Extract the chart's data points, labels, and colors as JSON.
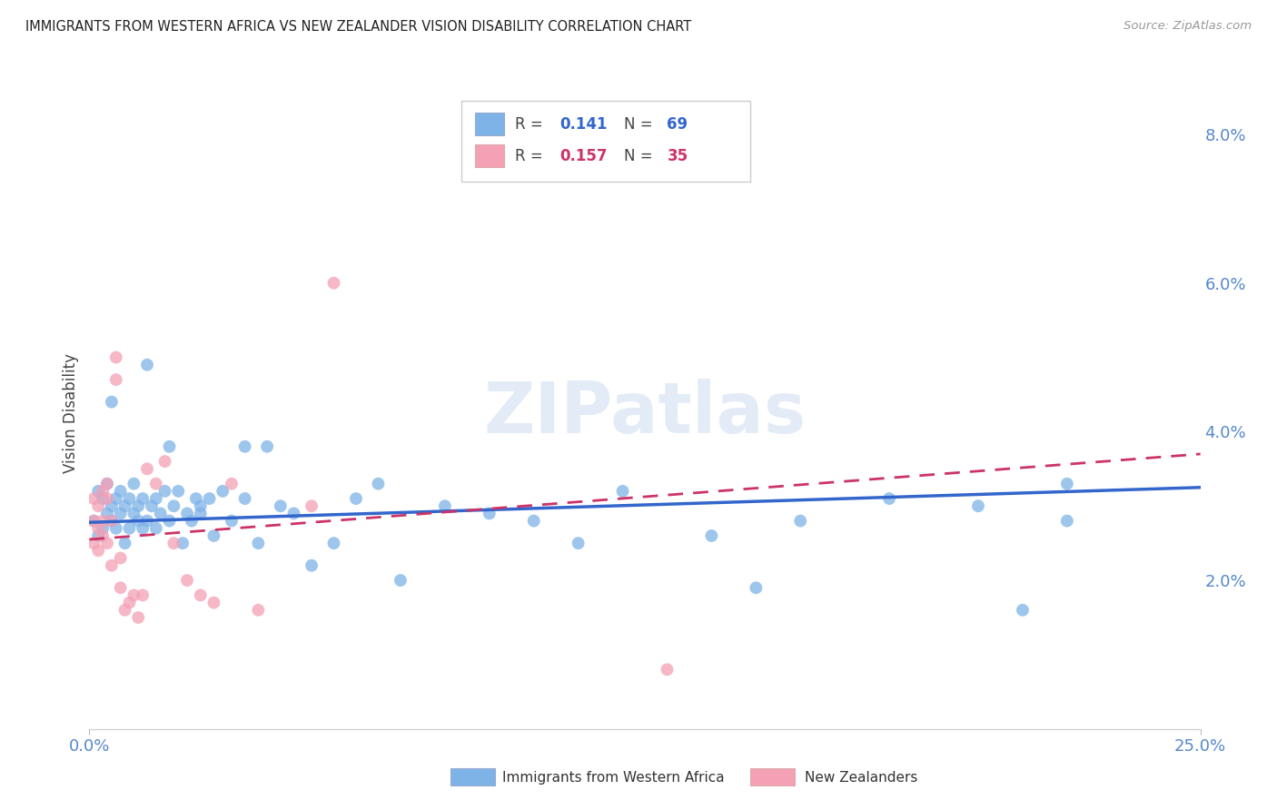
{
  "title": "IMMIGRANTS FROM WESTERN AFRICA VS NEW ZEALANDER VISION DISABILITY CORRELATION CHART",
  "source": "Source: ZipAtlas.com",
  "ylabel": "Vision Disability",
  "xmin": 0.0,
  "xmax": 0.25,
  "ymin": 0.0,
  "ymax": 0.085,
  "yticks": [
    0.02,
    0.04,
    0.06,
    0.08
  ],
  "ytick_labels": [
    "2.0%",
    "4.0%",
    "6.0%",
    "8.0%"
  ],
  "legend_r1": "R = 0.141",
  "legend_n1": "N = 69",
  "legend_r2": "R = 0.157",
  "legend_n2": "N = 35",
  "legend_label1": "Immigrants from Western Africa",
  "legend_label2": "New Zealanders",
  "blue_color": "#7EB3E8",
  "pink_color": "#F4A0B5",
  "trendline_blue": "#3366CC",
  "trendline_pink": "#CC3366",
  "axis_color": "#5588CC",
  "watermark_color": "#D0DFF0",
  "blue_scatter_x": [
    0.001,
    0.002,
    0.002,
    0.003,
    0.003,
    0.004,
    0.004,
    0.005,
    0.005,
    0.006,
    0.006,
    0.007,
    0.007,
    0.008,
    0.008,
    0.009,
    0.009,
    0.01,
    0.01,
    0.011,
    0.011,
    0.012,
    0.012,
    0.013,
    0.014,
    0.015,
    0.015,
    0.016,
    0.017,
    0.018,
    0.019,
    0.02,
    0.021,
    0.022,
    0.023,
    0.024,
    0.025,
    0.027,
    0.028,
    0.03,
    0.032,
    0.035,
    0.038,
    0.04,
    0.043,
    0.046,
    0.05,
    0.055,
    0.06,
    0.065,
    0.07,
    0.08,
    0.09,
    0.1,
    0.11,
    0.12,
    0.14,
    0.15,
    0.16,
    0.18,
    0.2,
    0.21,
    0.22,
    0.005,
    0.013,
    0.018,
    0.025,
    0.035,
    0.22
  ],
  "blue_scatter_y": [
    0.028,
    0.026,
    0.032,
    0.027,
    0.031,
    0.029,
    0.033,
    0.028,
    0.03,
    0.027,
    0.031,
    0.029,
    0.032,
    0.025,
    0.03,
    0.027,
    0.031,
    0.029,
    0.033,
    0.028,
    0.03,
    0.027,
    0.031,
    0.028,
    0.03,
    0.027,
    0.031,
    0.029,
    0.032,
    0.028,
    0.03,
    0.032,
    0.025,
    0.029,
    0.028,
    0.031,
    0.029,
    0.031,
    0.026,
    0.032,
    0.028,
    0.031,
    0.025,
    0.038,
    0.03,
    0.029,
    0.022,
    0.025,
    0.031,
    0.033,
    0.02,
    0.03,
    0.029,
    0.028,
    0.025,
    0.032,
    0.026,
    0.019,
    0.028,
    0.031,
    0.03,
    0.016,
    0.028,
    0.044,
    0.049,
    0.038,
    0.03,
    0.038,
    0.033
  ],
  "pink_scatter_x": [
    0.001,
    0.001,
    0.001,
    0.002,
    0.002,
    0.002,
    0.003,
    0.003,
    0.003,
    0.004,
    0.004,
    0.004,
    0.005,
    0.005,
    0.006,
    0.006,
    0.007,
    0.007,
    0.008,
    0.009,
    0.01,
    0.011,
    0.012,
    0.013,
    0.015,
    0.017,
    0.019,
    0.022,
    0.025,
    0.028,
    0.032,
    0.038,
    0.05,
    0.055,
    0.13
  ],
  "pink_scatter_y": [
    0.028,
    0.031,
    0.025,
    0.027,
    0.03,
    0.024,
    0.028,
    0.032,
    0.026,
    0.031,
    0.025,
    0.033,
    0.028,
    0.022,
    0.05,
    0.047,
    0.023,
    0.019,
    0.016,
    0.017,
    0.018,
    0.015,
    0.018,
    0.035,
    0.033,
    0.036,
    0.025,
    0.02,
    0.018,
    0.017,
    0.033,
    0.016,
    0.03,
    0.06,
    0.008
  ]
}
